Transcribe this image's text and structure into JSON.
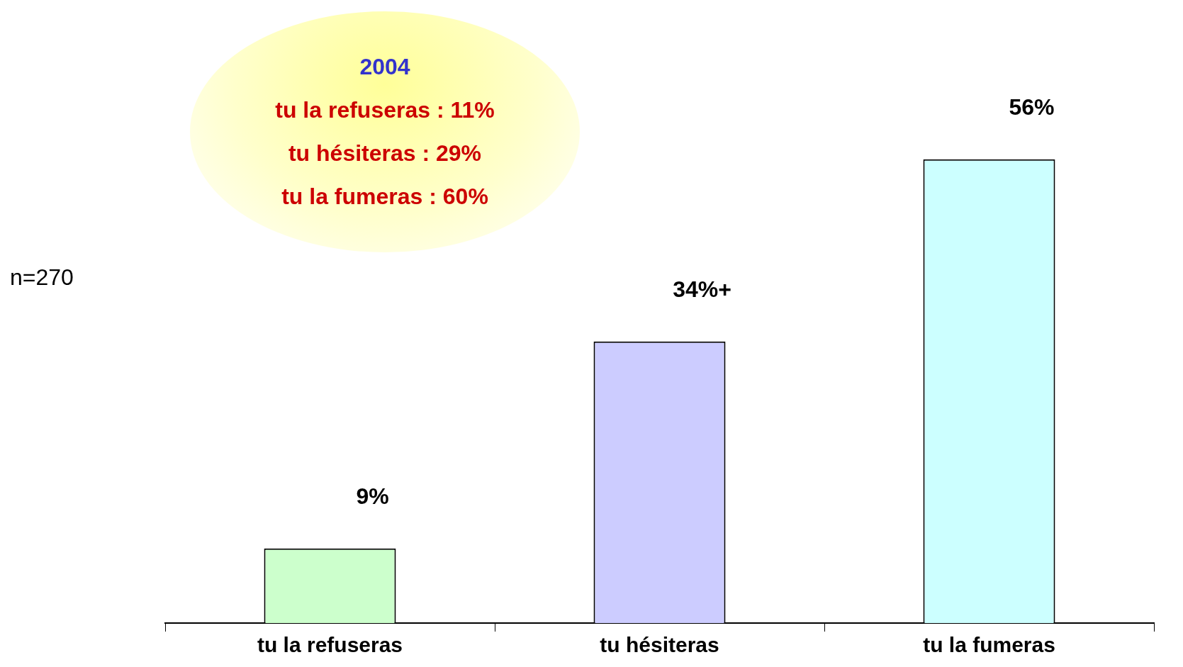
{
  "chart_data": {
    "type": "bar",
    "categories": [
      "tu la refuseras",
      "tu hésiteras",
      "tu la fumeras"
    ],
    "values": [
      9,
      34,
      56
    ],
    "value_labels": [
      "9%",
      "34%+",
      "56%"
    ],
    "colors": [
      "#ccffcc",
      "#ccccff",
      "#ccffff"
    ],
    "annotations": [
      "2004",
      "tu la refuseras : 11%",
      "tu hésiteras : 29%",
      "tu la fumeras : 60%",
      "n=270"
    ],
    "grid": false,
    "legend": false
  }
}
